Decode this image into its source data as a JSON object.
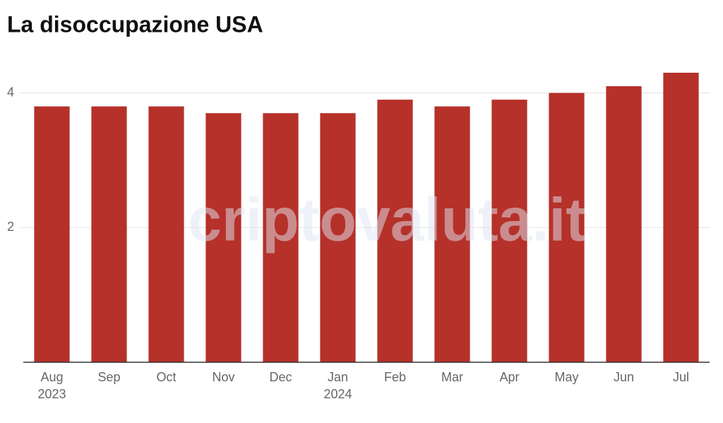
{
  "chart_data": {
    "type": "bar",
    "title": "La disoccupazione USA",
    "categories": [
      "Aug",
      "Sep",
      "Oct",
      "Nov",
      "Dec",
      "Jan",
      "Feb",
      "Mar",
      "Apr",
      "May",
      "Jun",
      "Jul"
    ],
    "x_year_labels": [
      "2023",
      null,
      null,
      null,
      null,
      "2024",
      null,
      null,
      null,
      null,
      null,
      null
    ],
    "values": [
      3.8,
      3.8,
      3.8,
      3.7,
      3.7,
      3.7,
      3.9,
      3.8,
      3.9,
      4.0,
      4.1,
      4.3
    ],
    "color": "#b5312a",
    "ylim": [
      0,
      4.3
    ],
    "yticks": [
      2,
      4
    ],
    "grid": true,
    "watermark": "criptovaluta.it"
  }
}
